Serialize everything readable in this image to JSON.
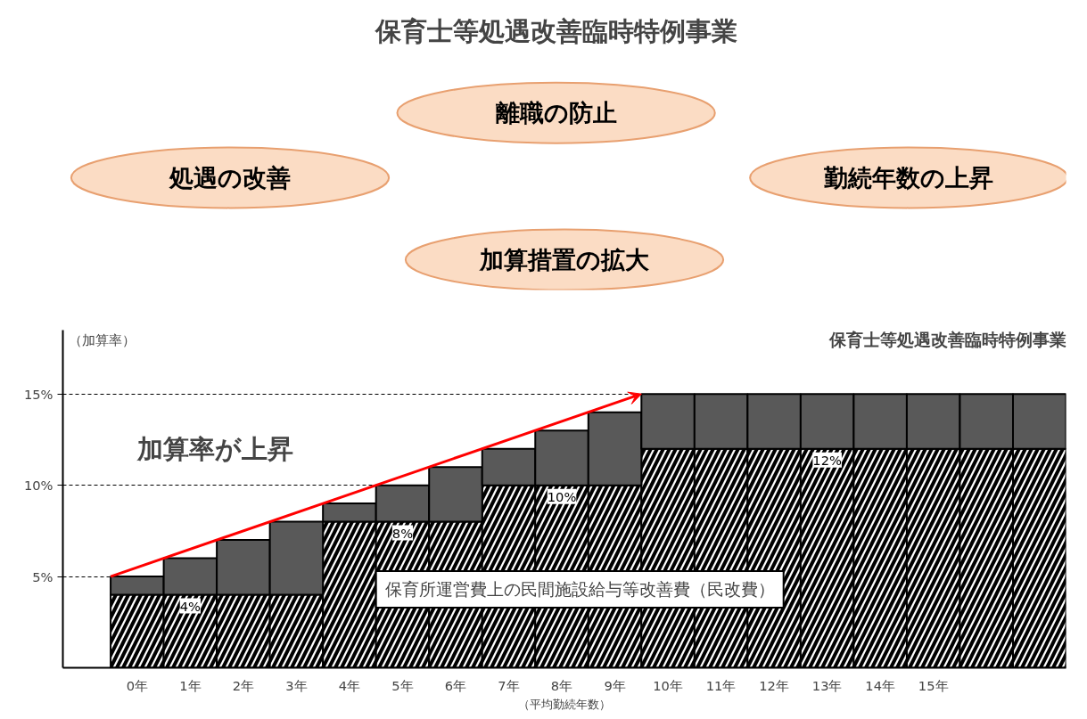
{
  "chart_data": {
    "type": "bar",
    "stacked": true,
    "title": "保育士等処遇改善臨時特例事業",
    "ylabel": "（加算率）",
    "xlabel": "（平均勤続年数）",
    "categories": [
      "0年",
      "1年",
      "2年",
      "3年",
      "4年",
      "5年",
      "6年",
      "7年",
      "8年",
      "9年",
      "10年",
      "11年",
      "12年",
      "13年",
      "14年",
      "15年",
      null,
      null
    ],
    "series": [
      {
        "name": "保育所運営費上の民間施設給与等改善費（民改費）",
        "color": "#ffffff",
        "values": [
          4,
          4,
          4,
          4,
          8,
          8,
          8,
          10,
          10,
          10,
          12,
          12,
          12,
          12,
          12,
          12,
          12,
          12
        ],
        "value_labels": [
          null,
          "4%",
          null,
          null,
          null,
          "8%",
          null,
          null,
          "10%",
          null,
          null,
          null,
          null,
          "12%",
          null,
          null,
          null,
          null
        ]
      },
      {
        "name": "保育士等処遇改善臨時特例事業",
        "color": "#595959",
        "values": [
          1,
          2,
          3,
          4,
          1,
          2,
          3,
          2,
          3,
          4,
          3,
          3,
          3,
          3,
          3,
          3,
          3,
          3
        ]
      }
    ],
    "ylim": [
      0,
      18.5
    ],
    "yticks": [
      {
        "value": 5,
        "label": "5%"
      },
      {
        "value": 10,
        "label": "10%"
      },
      {
        "value": 15,
        "label": "15%"
      }
    ],
    "grid": "y",
    "legend": false,
    "annotations": [
      "処遇の改善",
      "離職の防止",
      "勤続年数の上昇",
      "加算措置の拡大",
      "加算率が上昇"
    ]
  }
}
